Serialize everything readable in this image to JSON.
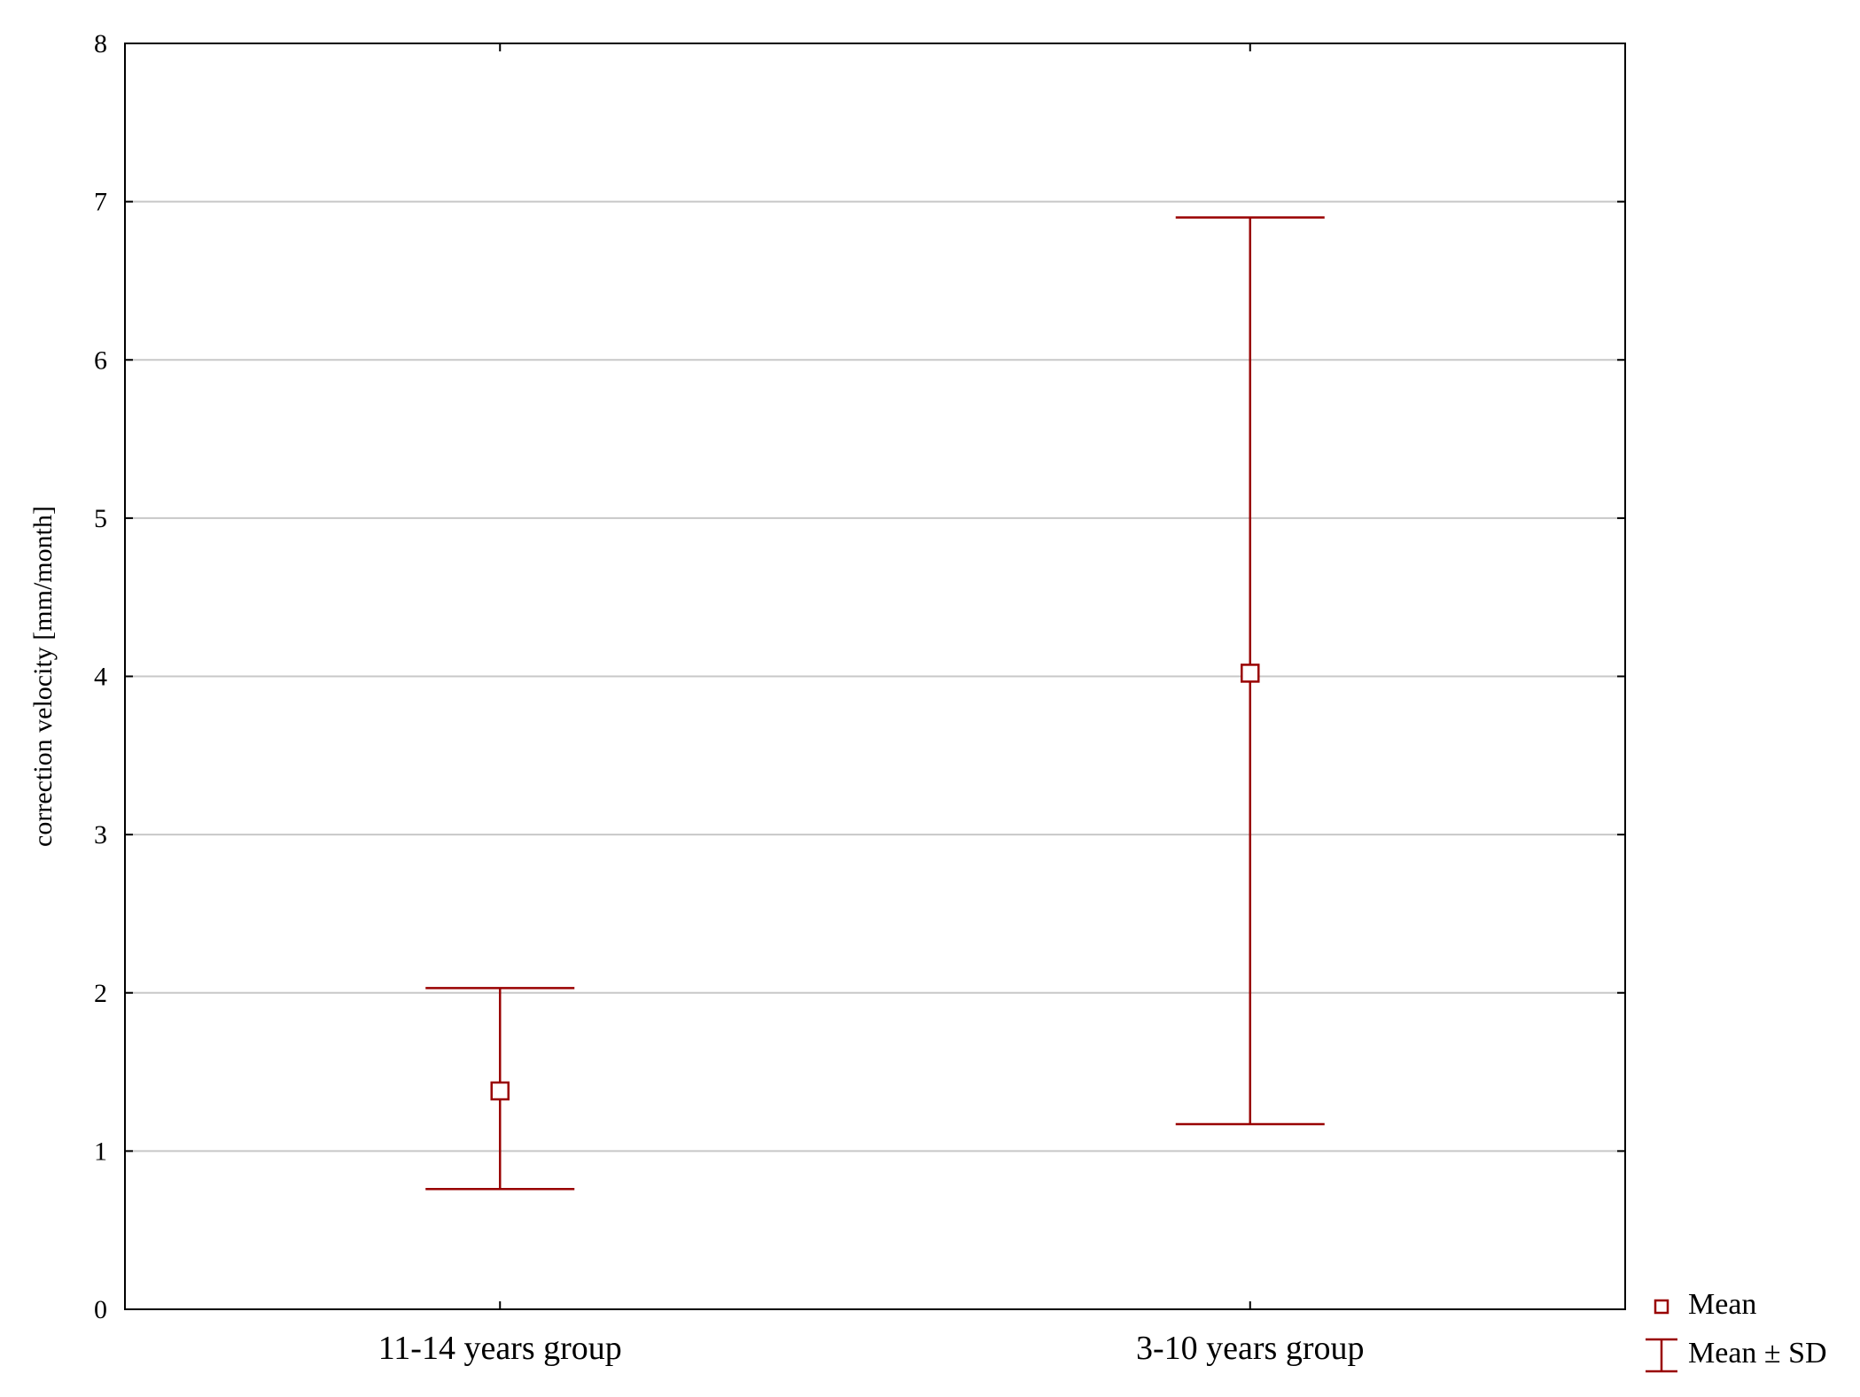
{
  "chart_data": {
    "type": "scatter",
    "title": "",
    "xlabel": "",
    "ylabel": "correction velocity [mm/month]",
    "ylim": [
      0,
      8
    ],
    "yticks": [
      0,
      1,
      2,
      3,
      4,
      5,
      6,
      7,
      8
    ],
    "grid": true,
    "legend_position": "bottom-right",
    "categories": [
      "11-14 years group",
      "3-10 years group"
    ],
    "mean": [
      1.38,
      4.02
    ],
    "sd_lower": [
      0.76,
      1.17
    ],
    "sd_upper": [
      2.03,
      6.9
    ],
    "legend": {
      "mean_label": "Mean",
      "error_label": "Mean ± SD"
    },
    "color": "#990000",
    "grid_color": "#c8c8c8"
  }
}
